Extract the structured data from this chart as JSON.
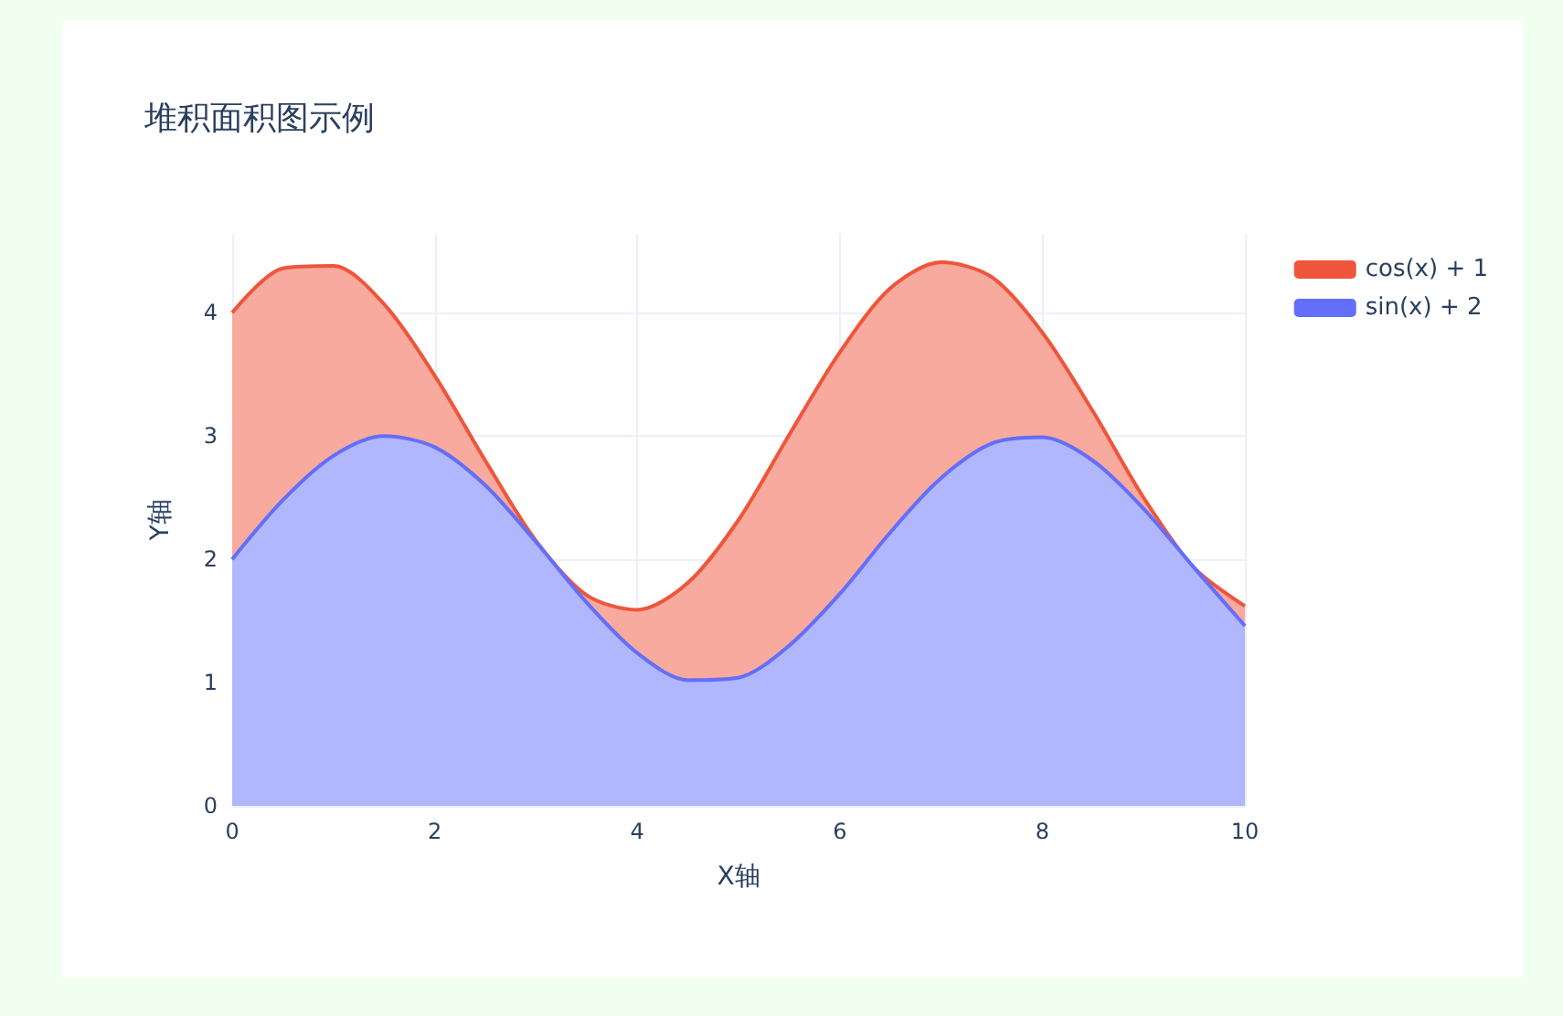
{
  "chart_data": {
    "type": "area",
    "title": "堆积面积图示例",
    "xlabel": "X轴",
    "ylabel": "Y轴",
    "stacked": true,
    "x": [
      0,
      0.5,
      1,
      1.5,
      2,
      2.5,
      3,
      3.5,
      4,
      4.5,
      5,
      5.5,
      6,
      6.5,
      7,
      7.5,
      8,
      8.5,
      9,
      9.5,
      10
    ],
    "series": [
      {
        "name": "sin(x) + 2",
        "color": "#636efa",
        "values": [
          2,
          2.48,
          2.84,
          3,
          2.91,
          2.6,
          2.14,
          1.65,
          1.24,
          1.02,
          1.04,
          1.3,
          1.72,
          2.22,
          2.66,
          2.94,
          2.99,
          2.8,
          2.41,
          1.93,
          1.46
        ]
      },
      {
        "name": "cos(x) + 1",
        "color": "#ef553b",
        "values": [
          2,
          1.88,
          1.54,
          1.07,
          0.58,
          0.2,
          0.01,
          0.06,
          0.35,
          0.79,
          1.28,
          1.71,
          1.96,
          1.98,
          1.75,
          1.35,
          0.85,
          0.4,
          0.09,
          0,
          0.16
        ]
      }
    ],
    "xlim": [
      0,
      10
    ],
    "xticks": [
      0,
      2,
      4,
      6,
      8,
      10
    ],
    "ylim": [
      0,
      4.64
    ],
    "yticks": [
      0,
      1,
      2,
      3,
      4
    ],
    "grid": true,
    "legend": "top right"
  }
}
